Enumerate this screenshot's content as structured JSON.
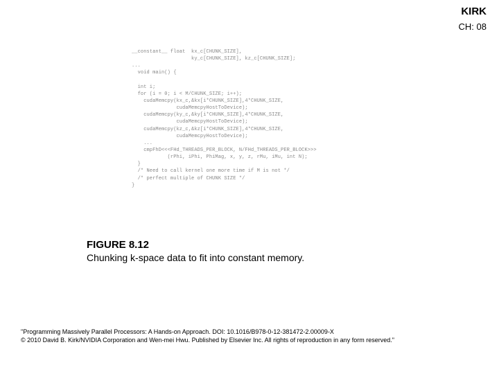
{
  "header": {
    "kirk": "KIRK",
    "ch": "CH: 08"
  },
  "code": {
    "line0": "__constant__ float  kx_c[CHUNK_SIZE],",
    "line1": "                    ky_c[CHUNK_SIZE], kz_c[CHUNK_SIZE];",
    "line2": "...",
    "line3": "  void main() {",
    "line4": "",
    "line5": "  int i;",
    "line6": "  for (i = 0; i < M/CHUNK_SIZE; i++);",
    "line7": "    cudaMemcpy(kx_c,&kx[i*CHUNK_SIZE],4*CHUNK_SIZE,",
    "line8": "               cudaMemcpyHostToDevice);",
    "line9": "    cudaMemcpy(ky_c,&ky[i*CHUNK_SIZE],4*CHUNK_SIZE,",
    "line10": "               cudaMemcpyHostToDevice);",
    "line11": "    cudaMemcpy(kz_c,&kz[i*CHUNK_SIZE],4*CHUNK_SIZE,",
    "line12": "               cudaMemcpyHostToDevice);",
    "line13": "    ...",
    "line14": "    cmpFhD<<<FHd_THREADS_PER_BLOCK, N/FHd_THREADS_PER_BLOCK>>>",
    "line15": "            (rPhi, iPhi, PhiMag, x, y, z, rMu, iMu, int N);",
    "line16": "  }",
    "line17": "  /* Need to call kernel one more time if M is not */",
    "line18": "  /* perfect multiple of CHUNK SIZE */",
    "line19": "}"
  },
  "figure": {
    "number": "FIGURE 8.12",
    "description": "Chunking k-space data to fit into constant memory."
  },
  "footer": {
    "line1": "\"Programming Massively Parallel Processors: A Hands-on Approach. DOI: 10.1016/B978-0-12-381472-2.00009-X",
    "line2": "© 2010 David B. Kirk/NVIDIA Corporation and Wen-mei Hwu. Published by Elsevier Inc. All rights of reproduction in any form reserved.\""
  },
  "style": {
    "bg": "#ffffff",
    "text": "#000000",
    "code_text": "#888888",
    "header_fontsize": 15,
    "ch_fontsize": 13,
    "code_fontsize": 7,
    "fig_num_fontsize": 15,
    "fig_desc_fontsize": 14,
    "footer_fontsize": 9
  }
}
